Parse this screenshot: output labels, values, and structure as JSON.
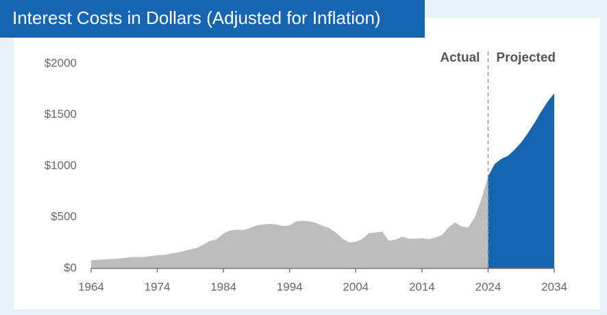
{
  "chart_data": {
    "type": "area",
    "title": "Interest Costs in Dollars (Adjusted for Inflation)",
    "series": [
      {
        "name": "Actual",
        "color": "#bdbdbd",
        "x": [
          1964,
          1965,
          1966,
          1967,
          1968,
          1969,
          1970,
          1971,
          1972,
          1973,
          1974,
          1975,
          1976,
          1977,
          1978,
          1979,
          1980,
          1981,
          1982,
          1983,
          1984,
          1985,
          1986,
          1987,
          1988,
          1989,
          1990,
          1991,
          1992,
          1993,
          1994,
          1995,
          1996,
          1997,
          1998,
          1999,
          2000,
          2001,
          2002,
          2003,
          2004,
          2005,
          2006,
          2007,
          2008,
          2009,
          2010,
          2011,
          2012,
          2013,
          2014,
          2015,
          2016,
          2017,
          2018,
          2019,
          2020,
          2021,
          2022,
          2023,
          2024
        ],
        "values": [
          80,
          84,
          88,
          92,
          95,
          102,
          110,
          111,
          112,
          120,
          130,
          132,
          145,
          155,
          170,
          185,
          200,
          235,
          270,
          285,
          340,
          370,
          380,
          375,
          395,
          420,
          430,
          435,
          430,
          415,
          420,
          460,
          465,
          460,
          445,
          415,
          395,
          350,
          290,
          255,
          260,
          290,
          345,
          350,
          360,
          270,
          280,
          310,
          290,
          290,
          295,
          285,
          300,
          325,
          400,
          450,
          410,
          400,
          500,
          680,
          900
        ]
      },
      {
        "name": "Projected",
        "color": "#1565b0",
        "x": [
          2024,
          2025,
          2026,
          2027,
          2028,
          2029,
          2030,
          2031,
          2032,
          2033,
          2034
        ],
        "values": [
          900,
          1020,
          1070,
          1100,
          1160,
          1230,
          1320,
          1420,
          1530,
          1630,
          1710
        ]
      }
    ],
    "xlim": [
      1964,
      2034
    ],
    "xticks": [
      1964,
      1974,
      1984,
      1994,
      2004,
      2014,
      2024,
      2034
    ],
    "ylim": [
      0,
      2000
    ],
    "yticks": [
      {
        "value": 0,
        "label": "$0"
      },
      {
        "value": 500,
        "label": "$500"
      },
      {
        "value": 1000,
        "label": "$1000"
      },
      {
        "value": 1500,
        "label": "$1500"
      },
      {
        "value": 2000,
        "label": "$2000"
      }
    ]
  }
}
